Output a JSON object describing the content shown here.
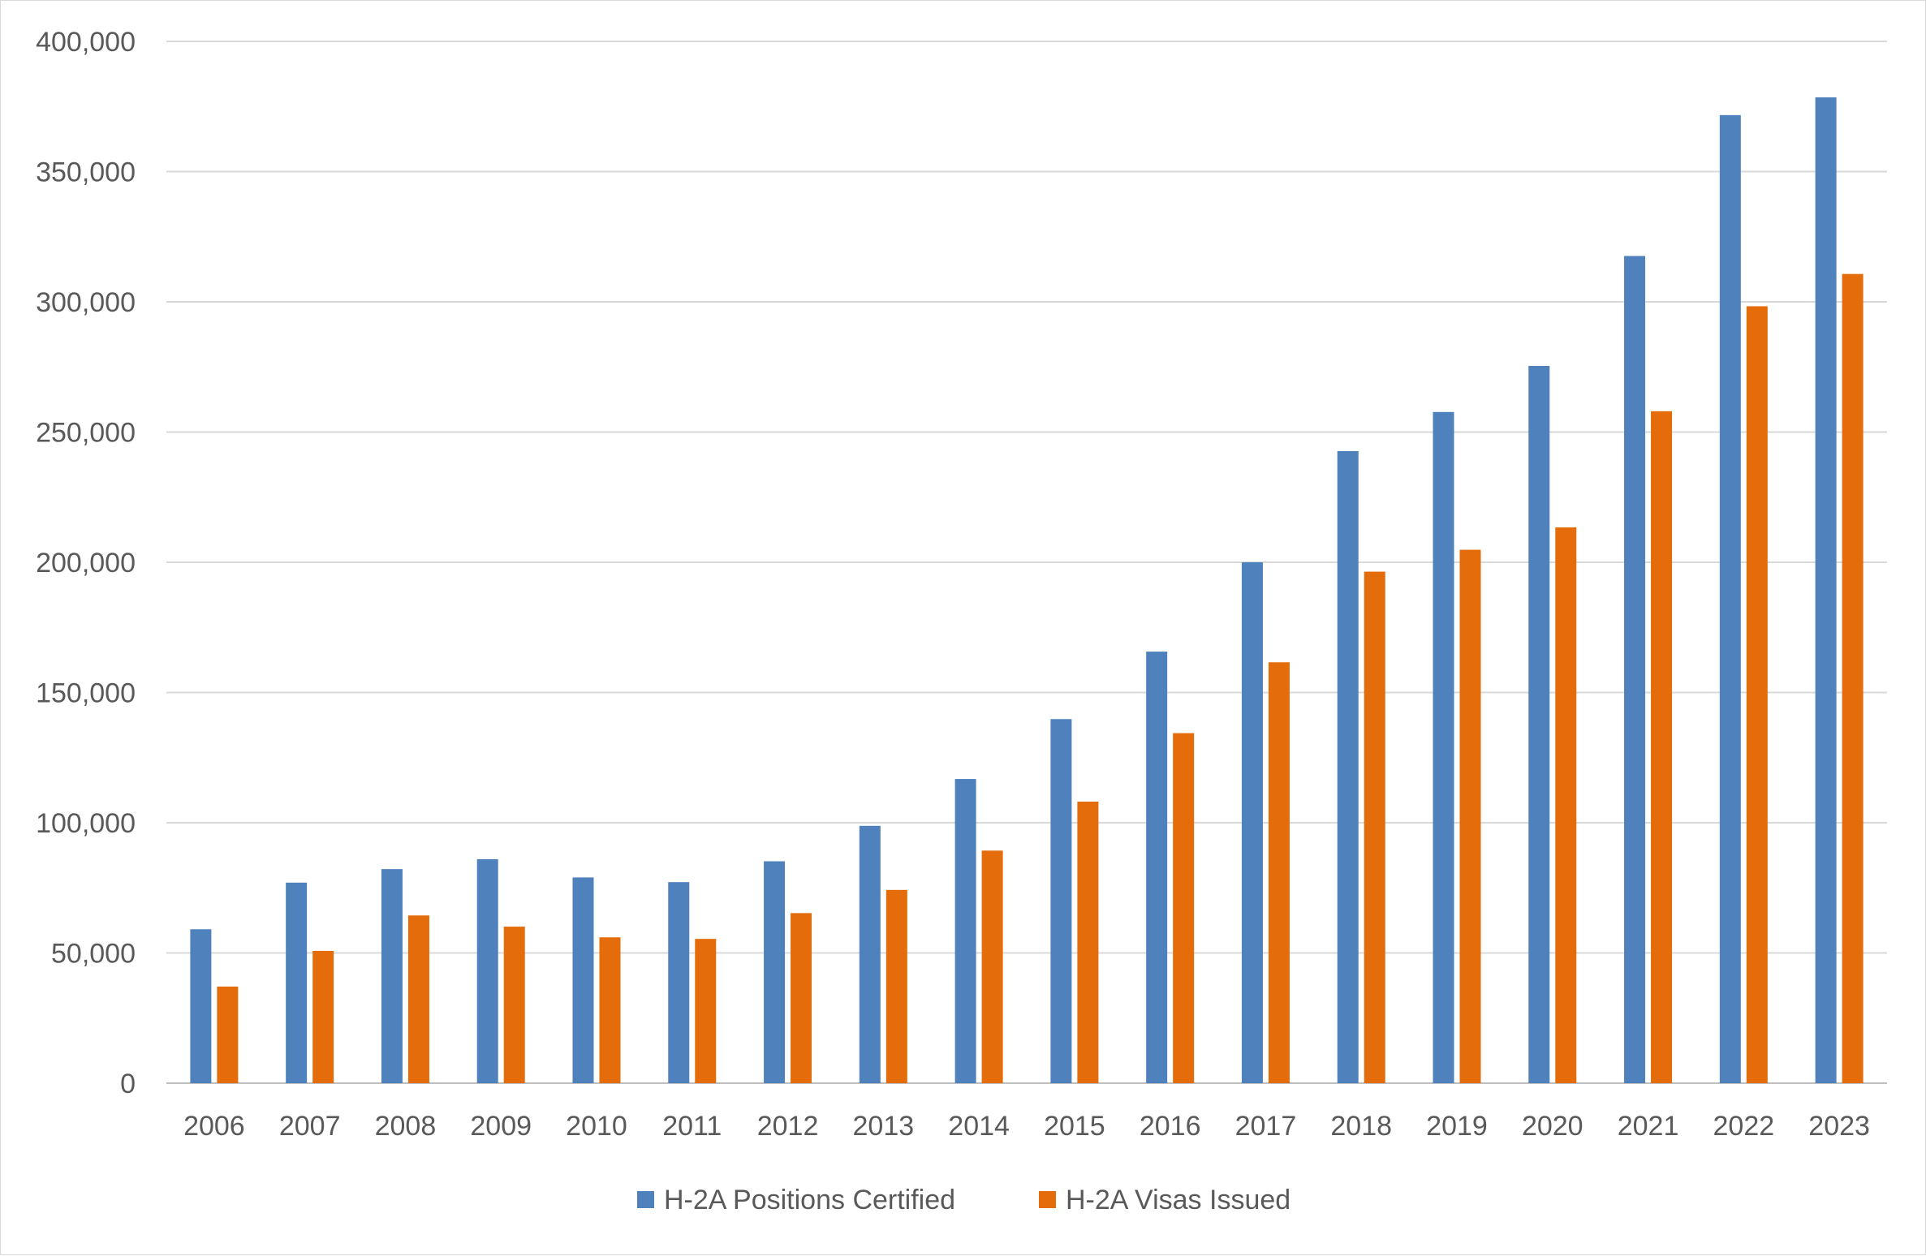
{
  "chart_data": {
    "type": "bar",
    "title": "",
    "xlabel": "",
    "ylabel": "",
    "ylim": [
      0,
      400000
    ],
    "yticks": [
      0,
      50000,
      100000,
      150000,
      200000,
      250000,
      300000,
      350000,
      400000
    ],
    "ytick_labels": [
      "0",
      "50,000",
      "100,000",
      "150,000",
      "200,000",
      "250,000",
      "300,000",
      "350,000",
      "400,000"
    ],
    "grid": true,
    "legend_position": "bottom",
    "categories": [
      "2006",
      "2007",
      "2008",
      "2009",
      "2010",
      "2011",
      "2012",
      "2013",
      "2014",
      "2015",
      "2016",
      "2017",
      "2018",
      "2019",
      "2020",
      "2021",
      "2022",
      "2023"
    ],
    "series": [
      {
        "name": "H-2A Positions Certified",
        "color": "#4f81bd",
        "values": [
          59100,
          77000,
          82200,
          86000,
          79000,
          77200,
          85200,
          98800,
          116800,
          139800,
          165700,
          200000,
          242700,
          257700,
          275400,
          317600,
          371700,
          378500
        ]
      },
      {
        "name": "H-2A Visas Issued",
        "color": "#e46c0a",
        "values": [
          37100,
          50800,
          64400,
          60100,
          56000,
          55400,
          65300,
          74200,
          89300,
          108100,
          134400,
          161600,
          196400,
          204800,
          213400,
          258000,
          298300,
          310700
        ]
      }
    ]
  }
}
